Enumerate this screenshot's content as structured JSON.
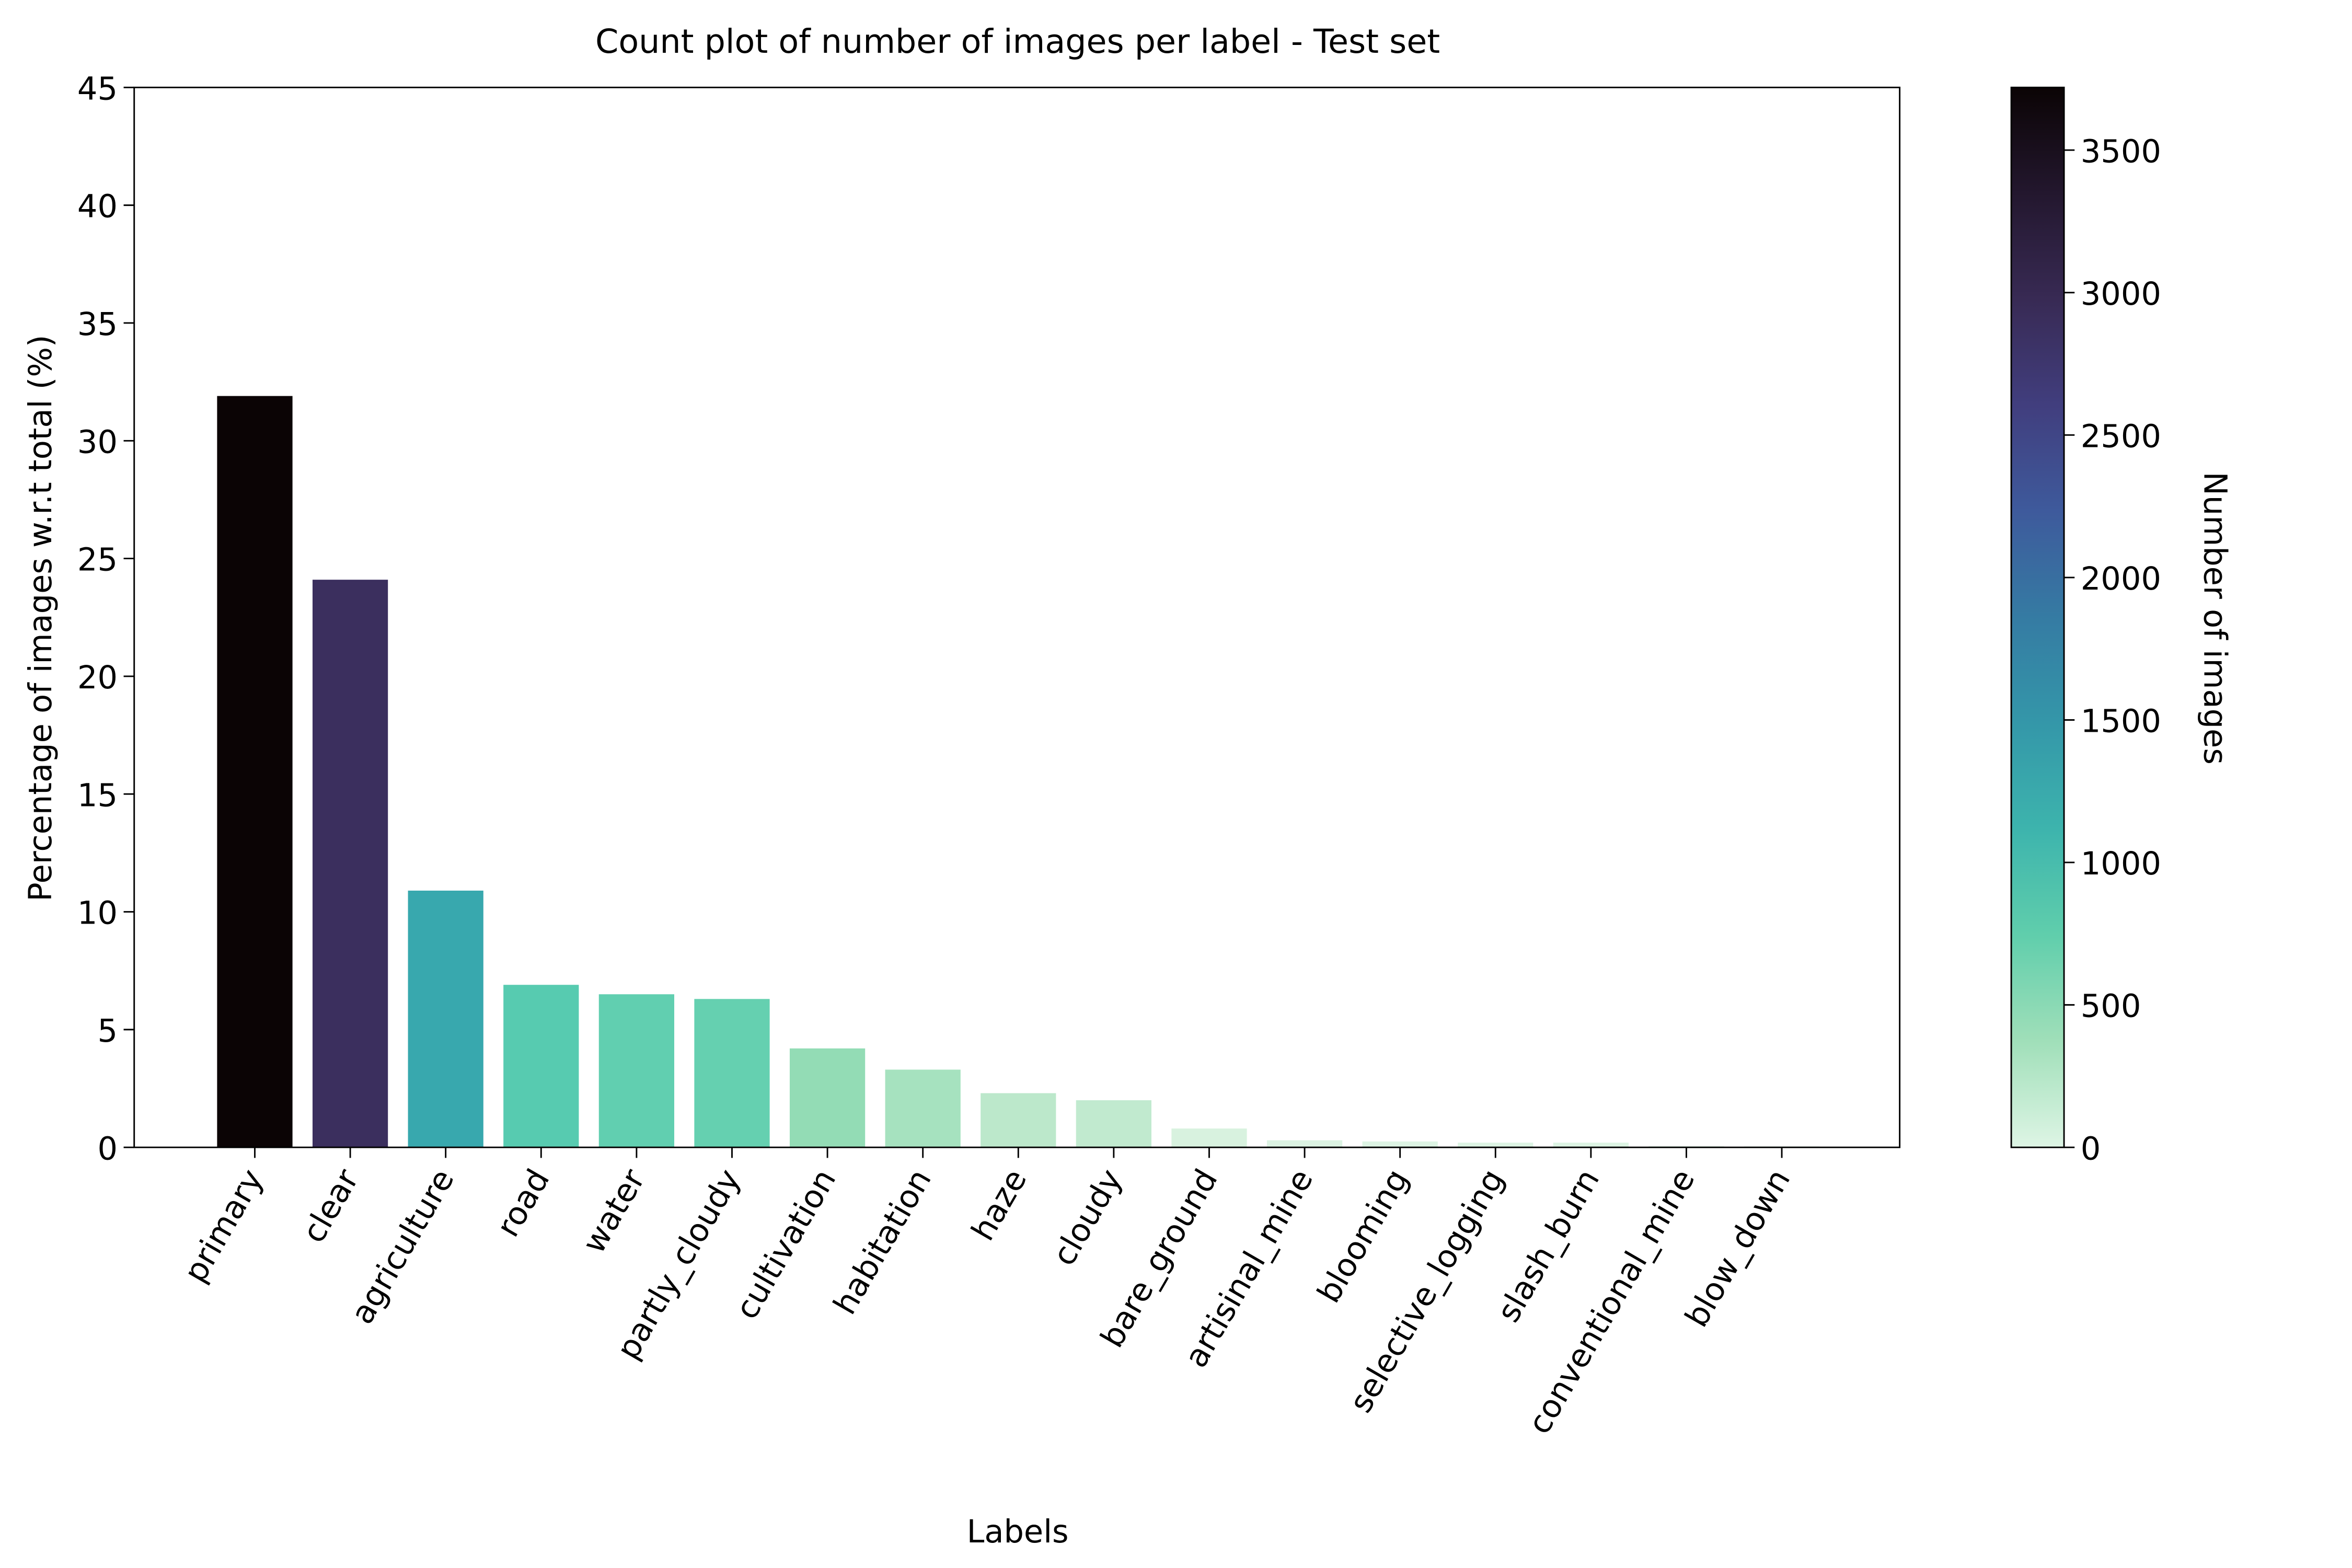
{
  "chart_data": {
    "type": "bar",
    "title": "Count plot of number of images per label - Test set",
    "x_label": "Labels",
    "y_label": "Percentage of images w.r.t total (%)",
    "categories": [
      "primary",
      "clear",
      "agriculture",
      "road",
      "water",
      "partly_cloudy",
      "cultivation",
      "habitation",
      "haze",
      "cloudy",
      "bare_ground",
      "artisinal_mine",
      "blooming",
      "selective_logging",
      "slash_burn",
      "conventional_mine",
      "blow_down"
    ],
    "values": [
      31.9,
      24.1,
      10.9,
      6.9,
      6.5,
      6.3,
      4.2,
      3.3,
      2.3,
      2.0,
      0.8,
      0.3,
      0.25,
      0.2,
      0.2,
      0.05,
      0.04
    ],
    "colors": [
      "#0b0405",
      "#3b2f5e",
      "#38a8ae",
      "#57cbb0",
      "#61cfb0",
      "#65d0b0",
      "#93dcb5",
      "#a6e2bf",
      "#bce8cb",
      "#c1eacf",
      "#d8f2df",
      "#dcf3e3",
      "#ddf4e4",
      "#ddf4e4",
      "#ddf4e4",
      "#def5e5",
      "#def5e5"
    ],
    "ylim": [
      0,
      45
    ],
    "yticks": [
      0,
      5,
      10,
      15,
      20,
      25,
      30,
      35,
      40,
      45
    ],
    "colorbar": {
      "label": "Number of images",
      "lim": [
        0,
        3720
      ],
      "ticks": [
        0,
        500,
        1000,
        1500,
        2000,
        2500,
        3000,
        3500
      ],
      "colors": [
        "#def5e5",
        "#a0dfb9",
        "#60ceac",
        "#3db4ad",
        "#3497a9",
        "#357ba3",
        "#3e5a9c",
        "#413e7e",
        "#382a54",
        "#23172e",
        "#0b0405"
      ]
    }
  }
}
